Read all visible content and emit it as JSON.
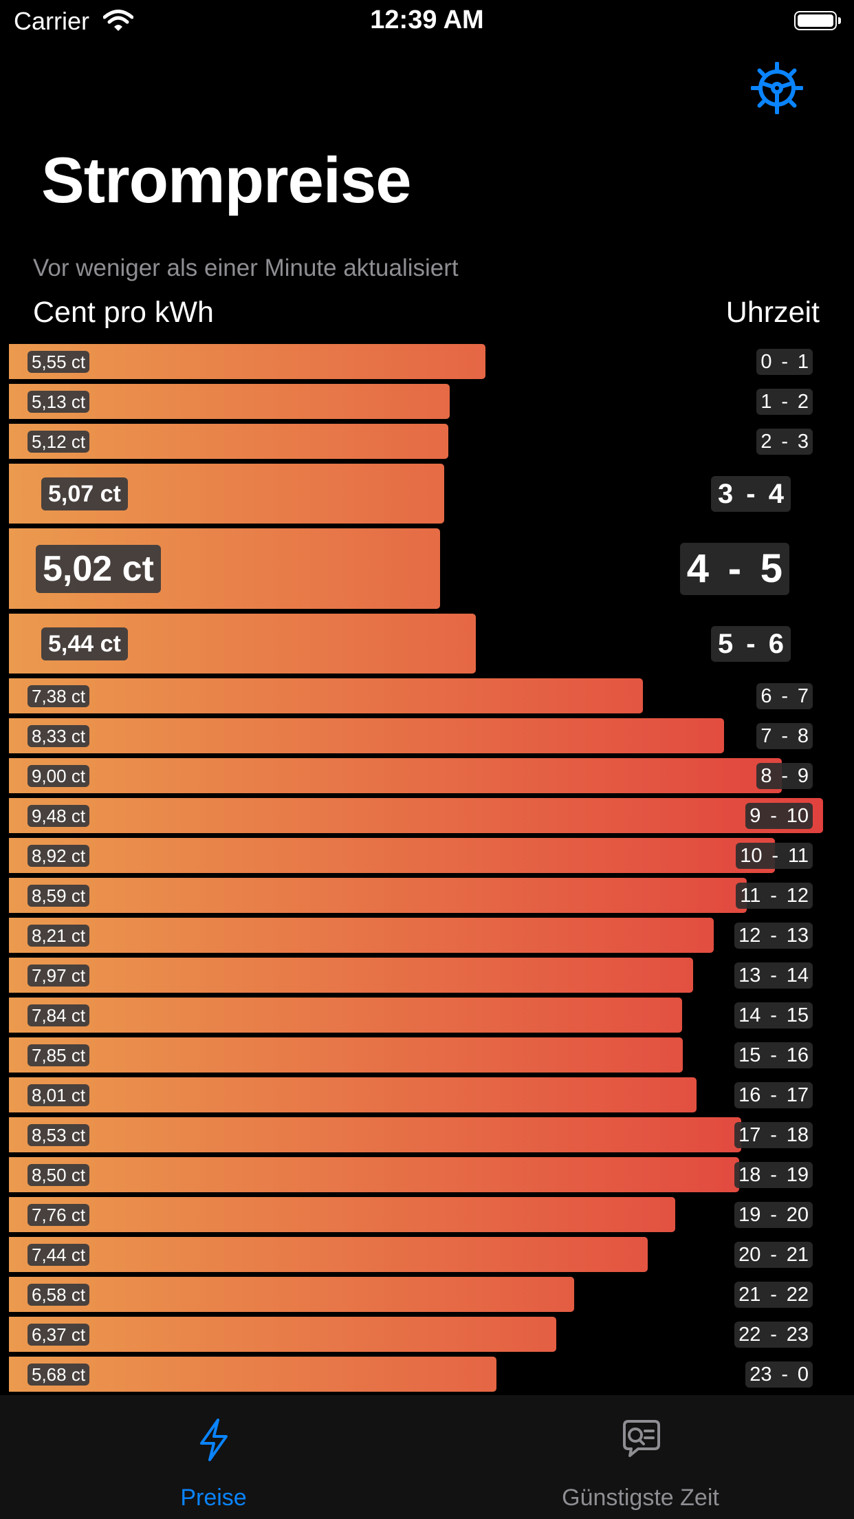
{
  "status": {
    "carrier": "Carrier",
    "time": "12:39 AM"
  },
  "header": {
    "title": "Strompreise",
    "updated": "Vor weniger als einer Minute aktualisiert",
    "col_price": "Cent pro kWh",
    "col_time": "Uhrzeit"
  },
  "icons": {
    "settings": "gear-icon",
    "tab_prices": "bolt-icon",
    "tab_cheapest": "chat-search-icon"
  },
  "colors": {
    "accent": "#0a84ff",
    "bar_start": "#eb9a4e",
    "bar_end": "#e1423e",
    "inactive": "#8e8e93"
  },
  "chart_data": {
    "type": "bar",
    "unit": "ct",
    "categories": [
      "0 - 1",
      "1 - 2",
      "2 - 3",
      "3 - 4",
      "4 - 5",
      "5 - 6",
      "6 - 7",
      "7 - 8",
      "8 - 9",
      "9 - 10",
      "10 - 11",
      "11 - 12",
      "12 - 13",
      "13 - 14",
      "14 - 15",
      "15 - 16",
      "16 - 17",
      "17 - 18",
      "18 - 19",
      "19 - 20",
      "20 - 21",
      "21 - 22",
      "22 - 23",
      "23 - 0"
    ],
    "values": [
      5.55,
      5.13,
      5.12,
      5.07,
      5.02,
      5.44,
      7.38,
      8.33,
      9.0,
      9.48,
      8.92,
      8.59,
      8.21,
      7.97,
      7.84,
      7.85,
      8.01,
      8.53,
      8.5,
      7.76,
      7.44,
      6.58,
      6.37,
      5.68
    ],
    "labels": [
      "5,55 ct",
      "5,13 ct",
      "5,12 ct",
      "5,07 ct",
      "5,02 ct",
      "5,44 ct",
      "7,38 ct",
      "8,33 ct",
      "9,00 ct",
      "9,48 ct",
      "8,92 ct",
      "8,59 ct",
      "8,21 ct",
      "7,97 ct",
      "7,84 ct",
      "7,85 ct",
      "8,01 ct",
      "8,53 ct",
      "8,50 ct",
      "7,76 ct",
      "7,44 ct",
      "6,58 ct",
      "6,37 ct",
      "5,68 ct"
    ],
    "highlighted": [
      "3 - 4",
      "4 - 5",
      "5 - 6"
    ],
    "cheapest": "4 - 5"
  },
  "tabs": [
    {
      "label": "Preise",
      "active": true
    },
    {
      "label": "Günstigste Zeit",
      "active": false
    }
  ]
}
